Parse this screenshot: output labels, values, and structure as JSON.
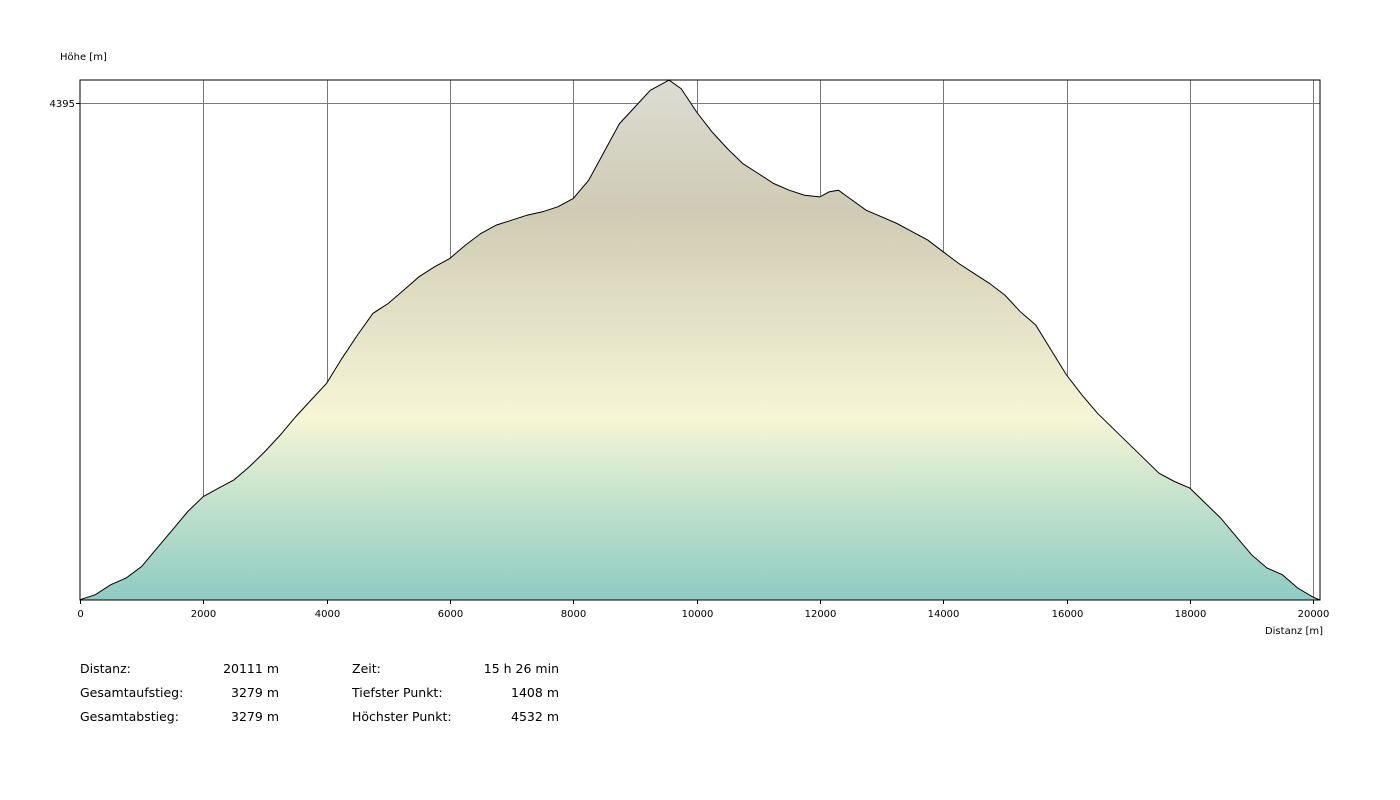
{
  "chart_data": {
    "type": "area",
    "ylabel": "Höhe [m]",
    "xlabel": "Distanz [m]",
    "xlim": [
      0,
      20111
    ],
    "ylim": [
      1408,
      4532
    ],
    "x_ticks": [
      0,
      2000,
      4000,
      6000,
      8000,
      10000,
      12000,
      14000,
      16000,
      18000,
      20000
    ],
    "y_ticks": [
      4395
    ],
    "grid": true,
    "colors": {
      "line": "#000000",
      "grid": "#7a7a7a",
      "fill_gradient": [
        "#dcdcd4",
        "#cfcbb4",
        "#f6f6d6",
        "#c5e3cd",
        "#8ecbc3"
      ]
    },
    "series": [
      {
        "x": [
          0,
          250,
          500,
          750,
          1000,
          1250,
          1500,
          1750,
          2000,
          2250,
          2500,
          2750,
          3000,
          3250,
          3500,
          3750,
          4000,
          4250,
          4500,
          4750,
          5000,
          5250,
          5500,
          5750,
          6000,
          6250,
          6500,
          6750,
          7000,
          7250,
          7500,
          7750,
          8000,
          8250,
          8500,
          8750,
          9000,
          9250,
          9500,
          9550,
          9750,
          10000,
          10250,
          10500,
          10750,
          11000,
          11250,
          11500,
          11750,
          12000,
          12150,
          12300,
          12450,
          12750,
          13000,
          13250,
          13500,
          13750,
          14000,
          14250,
          14500,
          14750,
          15000,
          15250,
          15500,
          15750,
          16000,
          16250,
          16500,
          16750,
          17000,
          17250,
          17500,
          17750,
          18000,
          18250,
          18500,
          18750,
          19000,
          19250,
          19500,
          19750,
          20000,
          20111
        ],
        "y": [
          1410,
          1440,
          1500,
          1540,
          1610,
          1720,
          1830,
          1940,
          2030,
          2080,
          2130,
          2210,
          2300,
          2400,
          2510,
          2610,
          2710,
          2860,
          3000,
          3130,
          3190,
          3270,
          3350,
          3410,
          3460,
          3540,
          3610,
          3660,
          3690,
          3720,
          3740,
          3770,
          3820,
          3930,
          4100,
          4270,
          4370,
          4470,
          4520,
          4532,
          4480,
          4340,
          4220,
          4120,
          4030,
          3970,
          3910,
          3870,
          3840,
          3830,
          3860,
          3870,
          3830,
          3750,
          3710,
          3670,
          3620,
          3570,
          3500,
          3430,
          3370,
          3310,
          3240,
          3140,
          3060,
          2910,
          2760,
          2640,
          2530,
          2440,
          2350,
          2260,
          2170,
          2120,
          2080,
          1990,
          1900,
          1790,
          1680,
          1600,
          1560,
          1480,
          1425,
          1408
        ]
      }
    ],
    "annotations": []
  },
  "stats": {
    "left": [
      {
        "label": "Distanz:",
        "value": "20111 m"
      },
      {
        "label": "Gesamtaufstieg:",
        "value": "3279 m"
      },
      {
        "label": "Gesamtabstieg:",
        "value": "3279 m"
      }
    ],
    "right": [
      {
        "label": "Zeit:",
        "value": "15 h 26 min"
      },
      {
        "label": "Tiefster Punkt:",
        "value": "1408 m"
      },
      {
        "label": "Höchster Punkt:",
        "value": "4532 m"
      }
    ]
  }
}
